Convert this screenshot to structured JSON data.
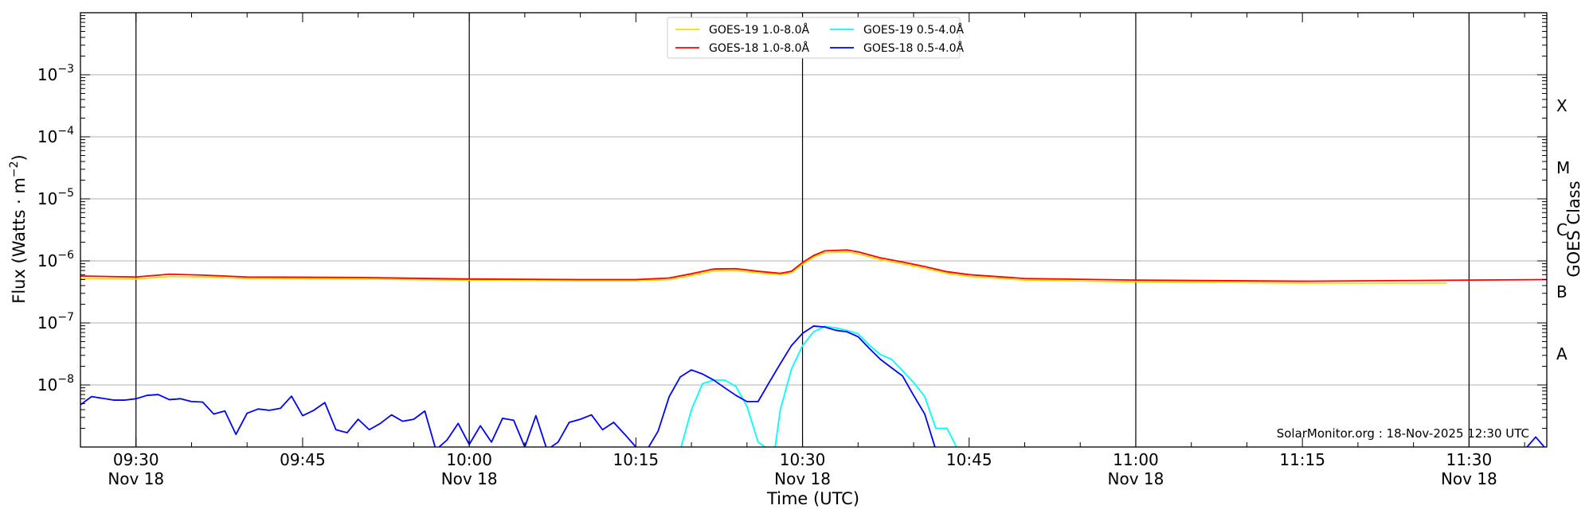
{
  "chart_data": {
    "type": "line",
    "title": "",
    "xlabel": "Time (UTC)",
    "ylabel": "Flux (Watts · m",
    "ylabel_superscript": "−2",
    "ylabel_suffix": ")",
    "y2label": "GOES Class",
    "y_scale": "log",
    "ylim": [
      1e-09,
      0.01
    ],
    "xlim_minutes_labels": [
      "09:25",
      "11:37"
    ],
    "xlim_start": "09:25",
    "xlim_end": "11:37",
    "grid": "horizontal at decades, vertical lines at half-hours",
    "y_ticks": [
      {
        "value": 1e-08,
        "base": "10",
        "exp": "−8"
      },
      {
        "value": 1e-07,
        "base": "10",
        "exp": "−7"
      },
      {
        "value": 1e-06,
        "base": "10",
        "exp": "−6"
      },
      {
        "value": 1e-05,
        "base": "10",
        "exp": "−5"
      },
      {
        "value": 0.0001,
        "base": "10",
        "exp": "−4"
      },
      {
        "value": 0.001,
        "base": "10",
        "exp": "−3"
      }
    ],
    "x_ticks": [
      {
        "time": "09:30",
        "label": "09:30",
        "sub": "Nov 18"
      },
      {
        "time": "09:45",
        "label": "09:45",
        "sub": ""
      },
      {
        "time": "10:00",
        "label": "10:00",
        "sub": "Nov 18"
      },
      {
        "time": "10:15",
        "label": "10:15",
        "sub": ""
      },
      {
        "time": "10:30",
        "label": "10:30",
        "sub": "Nov 18"
      },
      {
        "time": "10:45",
        "label": "10:45",
        "sub": ""
      },
      {
        "time": "11:00",
        "label": "11:00",
        "sub": "Nov 18"
      },
      {
        "time": "11:15",
        "label": "11:15",
        "sub": ""
      },
      {
        "time": "11:30",
        "label": "11:30",
        "sub": "Nov 18"
      }
    ],
    "vlines": [
      "09:30",
      "10:00",
      "10:30",
      "11:00",
      "11:30"
    ],
    "classes": [
      {
        "label": "A",
        "value": 3.16e-08
      },
      {
        "label": "B",
        "value": 3.16e-07
      },
      {
        "label": "C",
        "value": 3.16e-06
      },
      {
        "label": "M",
        "value": 3.16e-05
      },
      {
        "label": "X",
        "value": 0.000316
      }
    ],
    "legend_placement": "top-center",
    "series": [
      {
        "name": "GOES-19 1.0-8.0Å",
        "color": "#ffd700",
        "points": [
          [
            "09:25",
            5.2e-07
          ],
          [
            "09:30",
            5.1e-07
          ],
          [
            "09:33",
            5.6e-07
          ],
          [
            "09:36",
            5.5e-07
          ],
          [
            "09:40",
            5.2e-07
          ],
          [
            "09:50",
            5.1e-07
          ],
          [
            "10:00",
            4.9e-07
          ],
          [
            "10:10",
            4.8e-07
          ],
          [
            "10:15",
            4.8e-07
          ],
          [
            "10:18",
            5e-07
          ],
          [
            "10:20",
            5.8e-07
          ],
          [
            "10:22",
            6.9e-07
          ],
          [
            "10:24",
            7e-07
          ],
          [
            "10:26",
            6.4e-07
          ],
          [
            "10:28",
            6e-07
          ],
          [
            "10:29",
            6.4e-07
          ],
          [
            "10:30",
            8.8e-07
          ],
          [
            "10:31",
            1.15e-06
          ],
          [
            "10:32",
            1.35e-06
          ],
          [
            "10:34",
            1.4e-06
          ],
          [
            "10:35",
            1.3e-06
          ],
          [
            "10:37",
            1.05e-06
          ],
          [
            "10:39",
            9e-07
          ],
          [
            "10:41",
            7.6e-07
          ],
          [
            "10:43",
            6.3e-07
          ],
          [
            "10:45",
            5.6e-07
          ],
          [
            "10:50",
            4.9e-07
          ],
          [
            "11:00",
            4.6e-07
          ],
          [
            "11:15",
            4.4e-07
          ],
          [
            "11:28",
            4.4e-07
          ]
        ]
      },
      {
        "name": "GOES-18 1.0-8.0Å",
        "color": "#ff0000",
        "points": [
          [
            "09:25",
            5.7e-07
          ],
          [
            "09:30",
            5.5e-07
          ],
          [
            "09:33",
            6.1e-07
          ],
          [
            "09:36",
            5.9e-07
          ],
          [
            "09:40",
            5.5e-07
          ],
          [
            "09:50",
            5.4e-07
          ],
          [
            "10:00",
            5.1e-07
          ],
          [
            "10:10",
            5e-07
          ],
          [
            "10:15",
            5e-07
          ],
          [
            "10:18",
            5.3e-07
          ],
          [
            "10:20",
            6.2e-07
          ],
          [
            "10:22",
            7.4e-07
          ],
          [
            "10:24",
            7.5e-07
          ],
          [
            "10:26",
            6.8e-07
          ],
          [
            "10:28",
            6.3e-07
          ],
          [
            "10:29",
            6.8e-07
          ],
          [
            "10:30",
            9.4e-07
          ],
          [
            "10:31",
            1.22e-06
          ],
          [
            "10:32",
            1.45e-06
          ],
          [
            "10:34",
            1.5e-06
          ],
          [
            "10:35",
            1.4e-06
          ],
          [
            "10:37",
            1.12e-06
          ],
          [
            "10:39",
            9.6e-07
          ],
          [
            "10:41",
            8.1e-07
          ],
          [
            "10:43",
            6.7e-07
          ],
          [
            "10:45",
            6e-07
          ],
          [
            "10:50",
            5.2e-07
          ],
          [
            "11:00",
            4.9e-07
          ],
          [
            "11:15",
            4.7e-07
          ],
          [
            "11:30",
            4.9e-07
          ],
          [
            "11:37",
            5e-07
          ]
        ]
      },
      {
        "name": "GOES-19 0.5-4.0Å",
        "color": "#00ffff",
        "points": [
          [
            "10:19",
            9e-10
          ],
          [
            "10:20",
            4e-09
          ],
          [
            "10:21",
            1.05e-08
          ],
          [
            "10:22",
            1.2e-08
          ],
          [
            "10:23",
            1.2e-08
          ],
          [
            "10:24",
            9.5e-09
          ],
          [
            "10:25",
            4.5e-09
          ],
          [
            "10:26",
            1.2e-09
          ],
          [
            "10:27",
            9e-10
          ],
          [
            "10:27.5",
            9e-10
          ],
          [
            "10:28",
            4e-09
          ],
          [
            "10:29",
            1.8e-08
          ],
          [
            "10:30",
            4.3e-08
          ],
          [
            "10:31",
            7.2e-08
          ],
          [
            "10:32",
            8.8e-08
          ],
          [
            "10:33",
            8.3e-08
          ],
          [
            "10:34",
            7.6e-08
          ],
          [
            "10:35",
            6.7e-08
          ],
          [
            "10:36",
            4.4e-08
          ],
          [
            "10:37",
            3.1e-08
          ],
          [
            "10:38",
            2.6e-08
          ],
          [
            "10:39",
            1.7e-08
          ],
          [
            "10:40",
            1.1e-08
          ],
          [
            "10:41",
            6.5e-09
          ],
          [
            "10:42",
            2e-09
          ],
          [
            "10:43",
            2e-09
          ],
          [
            "10:44",
            9e-10
          ]
        ]
      },
      {
        "name": "GOES-18 0.5-4.0Å",
        "color": "#0000ff",
        "points": [
          [
            "09:25",
            4.8e-09
          ],
          [
            "09:26",
            6.5e-09
          ],
          [
            "09:28",
            5.7e-09
          ],
          [
            "09:29",
            5.7e-09
          ],
          [
            "09:30",
            6e-09
          ],
          [
            "09:31",
            6.8e-09
          ],
          [
            "09:32",
            7e-09
          ],
          [
            "09:33",
            5.8e-09
          ],
          [
            "09:34",
            6e-09
          ],
          [
            "09:35",
            5.4e-09
          ],
          [
            "09:36",
            5.3e-09
          ],
          [
            "09:37",
            3.4e-09
          ],
          [
            "09:38",
            3.8e-09
          ],
          [
            "09:39",
            1.6e-09
          ],
          [
            "09:40",
            3.5e-09
          ],
          [
            "09:41",
            4.1e-09
          ],
          [
            "09:42",
            3.9e-09
          ],
          [
            "09:43",
            4.2e-09
          ],
          [
            "09:44",
            6.6e-09
          ],
          [
            "09:45",
            3.2e-09
          ],
          [
            "09:46",
            3.9e-09
          ],
          [
            "09:47",
            5.2e-09
          ],
          [
            "09:48",
            1.9e-09
          ],
          [
            "09:49",
            1.7e-09
          ],
          [
            "09:50",
            2.8e-09
          ],
          [
            "09:51",
            1.9e-09
          ],
          [
            "09:52",
            2.4e-09
          ],
          [
            "09:53",
            3.3e-09
          ],
          [
            "09:54",
            2.6e-09
          ],
          [
            "09:55",
            2.8e-09
          ],
          [
            "09:56",
            3.8e-09
          ],
          [
            "09:57",
            9e-10
          ],
          [
            "09:58",
            1.3e-09
          ],
          [
            "09:59",
            2.4e-09
          ],
          [
            "10:00",
            1.1e-09
          ],
          [
            "10:01",
            2.2e-09
          ],
          [
            "10:02",
            1.2e-09
          ],
          [
            "10:03",
            2.9e-09
          ],
          [
            "10:04",
            2.7e-09
          ],
          [
            "10:05",
            1e-09
          ],
          [
            "10:06",
            3.2e-09
          ],
          [
            "10:07",
            9e-10
          ],
          [
            "10:08",
            1.2e-09
          ],
          [
            "10:09",
            2.5e-09
          ],
          [
            "10:10",
            2.8e-09
          ],
          [
            "10:11",
            3.3e-09
          ],
          [
            "10:12",
            1.9e-09
          ],
          [
            "10:13",
            2.5e-09
          ],
          [
            "10:14",
            1.6e-09
          ],
          [
            "10:15",
            1e-09
          ],
          [
            "10:16",
            9e-10
          ],
          [
            "10:17",
            1.8e-09
          ],
          [
            "10:18",
            6.5e-09
          ],
          [
            "10:19",
            1.35e-08
          ],
          [
            "10:20",
            1.75e-08
          ],
          [
            "10:21",
            1.5e-08
          ],
          [
            "10:22",
            1.2e-08
          ],
          [
            "10:23",
            9e-09
          ],
          [
            "10:24",
            6.8e-09
          ],
          [
            "10:25",
            5.4e-09
          ],
          [
            "10:26",
            5.4e-09
          ],
          [
            "10:27",
            1.1e-08
          ],
          [
            "10:28",
            2.2e-08
          ],
          [
            "10:29",
            4.3e-08
          ],
          [
            "10:30",
            6.8e-08
          ],
          [
            "10:31",
            8.9e-08
          ],
          [
            "10:32",
            8.6e-08
          ],
          [
            "10:33",
            7.6e-08
          ],
          [
            "10:34",
            7.2e-08
          ],
          [
            "10:35",
            6e-08
          ],
          [
            "10:36",
            3.9e-08
          ],
          [
            "10:37",
            2.6e-08
          ],
          [
            "10:38",
            1.9e-08
          ],
          [
            "10:39",
            1.4e-08
          ],
          [
            "10:40",
            6.8e-09
          ],
          [
            "10:41",
            3.4e-09
          ],
          [
            "10:42",
            9e-10
          ],
          [
            "11:35",
            9e-10
          ],
          [
            "11:36",
            1.45e-09
          ],
          [
            "11:37",
            9e-10
          ]
        ]
      }
    ],
    "annotation": "SolarMonitor.org : 18-Nov-2025 12:30 UTC"
  }
}
